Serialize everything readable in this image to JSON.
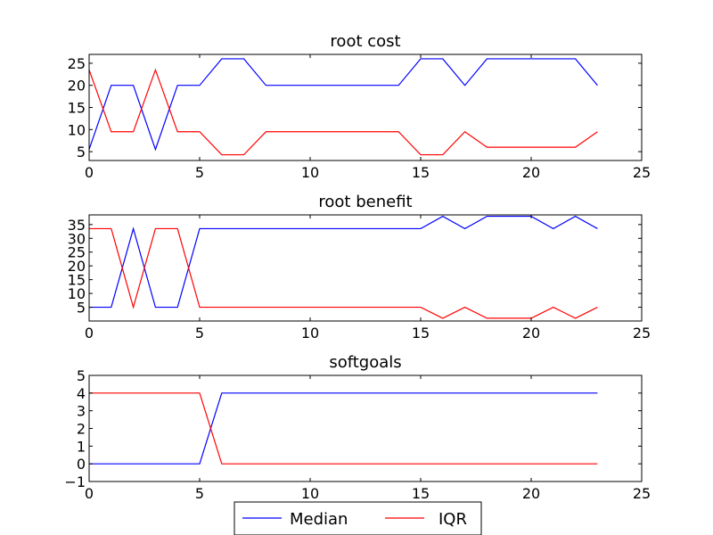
{
  "chart_data": [
    {
      "type": "line",
      "title": "root cost",
      "xlabel": "",
      "ylabel": "",
      "xlim": [
        0,
        25
      ],
      "ylim": [
        3,
        27
      ],
      "xticks": [
        0,
        5,
        10,
        15,
        20,
        25
      ],
      "yticks": [
        5,
        10,
        15,
        20,
        25
      ],
      "grid": false,
      "x": [
        0,
        1,
        2,
        3,
        4,
        5,
        6,
        7,
        8,
        9,
        10,
        11,
        12,
        13,
        14,
        15,
        16,
        17,
        18,
        19,
        20,
        21,
        22,
        23
      ],
      "series": [
        {
          "name": "Median",
          "color": "#0000ff",
          "values": [
            5.5,
            20,
            20,
            5.5,
            20,
            20,
            26,
            26,
            20,
            20,
            20,
            20,
            20,
            20,
            20,
            26,
            26,
            20,
            26,
            26,
            26,
            26,
            26,
            20
          ]
        },
        {
          "name": "IQR",
          "color": "#ff0000",
          "values": [
            23.5,
            9.5,
            9.5,
            23.5,
            9.5,
            9.5,
            4.3,
            4.3,
            9.5,
            9.5,
            9.5,
            9.5,
            9.5,
            9.5,
            9.5,
            4.3,
            4.3,
            9.5,
            6,
            6,
            6,
            6,
            6,
            9.5
          ]
        }
      ]
    },
    {
      "type": "line",
      "title": "root benefit",
      "xlabel": "",
      "ylabel": "",
      "xlim": [
        0,
        25
      ],
      "ylim": [
        0,
        38.5
      ],
      "xticks": [
        0,
        5,
        10,
        15,
        20,
        25
      ],
      "yticks": [
        5,
        10,
        15,
        20,
        25,
        30,
        35
      ],
      "grid": false,
      "x": [
        0,
        1,
        2,
        3,
        4,
        5,
        6,
        7,
        8,
        9,
        10,
        11,
        12,
        13,
        14,
        15,
        16,
        17,
        18,
        19,
        20,
        21,
        22,
        23
      ],
      "series": [
        {
          "name": "Median",
          "color": "#0000ff",
          "values": [
            5,
            5,
            33.5,
            5,
            5,
            33.5,
            33.5,
            33.5,
            33.5,
            33.5,
            33.5,
            33.5,
            33.5,
            33.5,
            33.5,
            33.5,
            38,
            33.5,
            38,
            38,
            38,
            33.5,
            38,
            33.5
          ]
        },
        {
          "name": "IQR",
          "color": "#ff0000",
          "values": [
            33.5,
            33.5,
            5,
            33.5,
            33.5,
            5,
            5,
            5,
            5,
            5,
            5,
            5,
            5,
            5,
            5,
            5,
            1,
            5,
            1,
            1,
            1,
            5,
            1,
            5
          ]
        }
      ]
    },
    {
      "type": "line",
      "title": "softgoals",
      "xlabel": "",
      "ylabel": "",
      "xlim": [
        0,
        25
      ],
      "ylim": [
        -1,
        5
      ],
      "xticks": [
        0,
        5,
        10,
        15,
        20,
        25
      ],
      "yticks": [
        -1,
        0,
        1,
        2,
        3,
        4,
        5
      ],
      "ytick_labels": [
        "−1",
        "0",
        "1",
        "2",
        "3",
        "4",
        "5"
      ],
      "grid": false,
      "x": [
        0,
        1,
        2,
        3,
        4,
        5,
        6,
        7,
        8,
        9,
        10,
        11,
        12,
        13,
        14,
        15,
        16,
        17,
        18,
        19,
        20,
        21,
        22,
        23
      ],
      "series": [
        {
          "name": "Median",
          "color": "#0000ff",
          "values": [
            0,
            0,
            0,
            0,
            0,
            0,
            4,
            4,
            4,
            4,
            4,
            4,
            4,
            4,
            4,
            4,
            4,
            4,
            4,
            4,
            4,
            4,
            4,
            4
          ]
        },
        {
          "name": "IQR",
          "color": "#ff0000",
          "values": [
            4,
            4,
            4,
            4,
            4,
            4,
            0,
            0,
            0,
            0,
            0,
            0,
            0,
            0,
            0,
            0,
            0,
            0,
            0,
            0,
            0,
            0,
            0,
            0
          ]
        }
      ]
    }
  ],
  "legend": {
    "placement": "bottom-center",
    "entries": [
      {
        "label": "Median",
        "color": "#0000ff"
      },
      {
        "label": "IQR",
        "color": "#ff0000"
      }
    ]
  }
}
